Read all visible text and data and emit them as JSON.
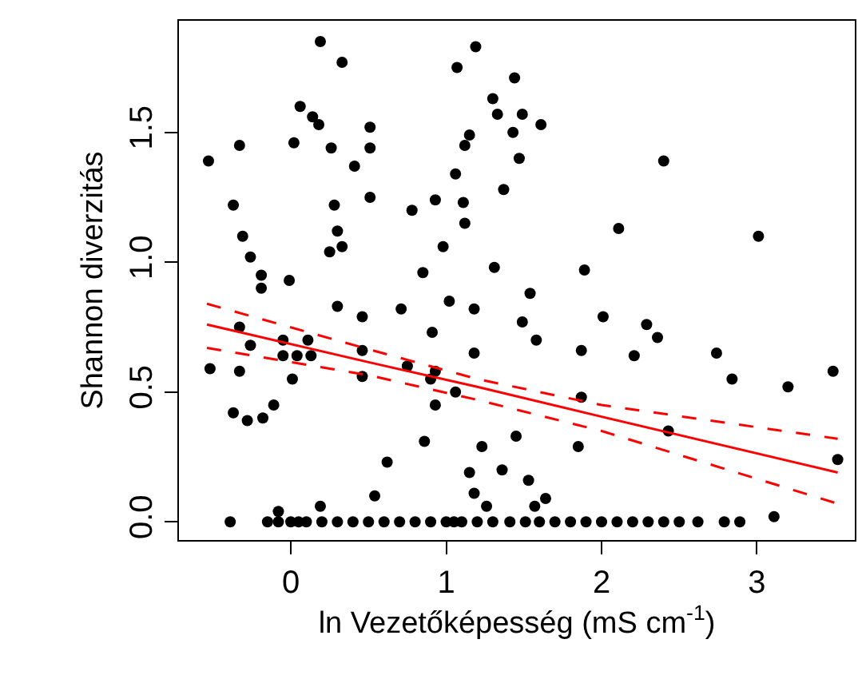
{
  "chart_data": {
    "type": "scatter",
    "xlabel": "ln Vezetőképesség (mS cm$^{-1}$)",
    "ylabel": "Shannon diverzitás",
    "xlim": [
      -0.72,
      3.63
    ],
    "ylim": [
      -0.07,
      1.93
    ],
    "xticks": [
      0,
      1,
      2,
      3
    ],
    "yticks": [
      {
        "value": 0,
        "label": "0.0"
      },
      {
        "value": 0.5,
        "label": "0.5"
      },
      {
        "value": 1,
        "label": "1.0"
      },
      {
        "value": 1.5,
        "label": "1.5"
      }
    ],
    "grid": false,
    "marker": "circle",
    "series": [
      {
        "color": "#000000",
        "x": [
          0.19,
          0.33,
          1.07,
          1.19,
          1.3,
          1.33,
          0.06,
          0.14,
          0.18,
          0.51,
          -0.33,
          0.02,
          0.26,
          0.51,
          1.15,
          1.12,
          -0.53,
          0.41,
          1.06,
          1.37,
          -0.37,
          0.28,
          0.51,
          0.78,
          0.93,
          1.11,
          1.12,
          -0.31,
          0.3,
          0.25,
          0.33,
          0.98,
          -0.26,
          -0.19,
          -0.01,
          0.85,
          1.31,
          1.44,
          1.49,
          1.61,
          1.43,
          1.47,
          2.4,
          2.11,
          3.01,
          1.89,
          -0.19,
          0.3,
          0.46,
          0.71,
          1.02,
          1.18,
          -0.33,
          -0.26,
          -0.05,
          -0.05,
          0.11,
          0.04,
          0.13,
          0.46,
          0.91,
          1.18,
          -0.52,
          -0.33,
          0.01,
          0.46,
          0.75,
          0.93,
          0.9,
          1.06,
          0.93,
          -0.37,
          -0.28,
          -0.18,
          -0.11,
          0.86,
          1.23,
          0.62,
          1.15,
          1.36,
          0.54,
          1.18,
          1.26,
          0.19,
          -0.08,
          1.54,
          1.49,
          2.01,
          2.29,
          2.36,
          1.58,
          1.87,
          2.21,
          2.74,
          2.84,
          3.2,
          3.49,
          1.87,
          2.43,
          3.52,
          1.45,
          1.85,
          1.53,
          1.64,
          1.57,
          3.11,
          -0.39,
          -0.15,
          -0.08,
          0,
          0.05,
          0.1,
          0.2,
          0.3,
          0.4,
          0.5,
          0.6,
          0.7,
          0.8,
          0.9,
          1.0,
          1.05,
          1.1,
          1.2,
          1.3,
          1.41,
          1.51,
          1.6,
          1.7,
          1.8,
          1.9,
          2.0,
          2.1,
          2.2,
          2.3,
          2.4,
          2.5,
          2.62,
          2.79,
          2.89
        ],
        "values": [
          1.85,
          1.77,
          1.75,
          1.83,
          1.63,
          1.57,
          1.6,
          1.56,
          1.53,
          1.52,
          1.45,
          1.46,
          1.44,
          1.44,
          1.49,
          1.45,
          1.39,
          1.37,
          1.34,
          1.28,
          1.22,
          1.22,
          1.25,
          1.2,
          1.24,
          1.23,
          1.15,
          1.1,
          1.12,
          1.04,
          1.06,
          1.06,
          1.02,
          0.95,
          0.93,
          0.96,
          0.98,
          1.71,
          1.57,
          1.53,
          1.5,
          1.4,
          1.39,
          1.13,
          1.1,
          0.97,
          0.9,
          0.83,
          0.79,
          0.82,
          0.85,
          0.82,
          0.75,
          0.68,
          0.7,
          0.64,
          0.7,
          0.64,
          0.64,
          0.66,
          0.73,
          0.65,
          0.59,
          0.58,
          0.55,
          0.56,
          0.6,
          0.58,
          0.55,
          0.5,
          0.45,
          0.42,
          0.39,
          0.4,
          0.45,
          0.31,
          0.29,
          0.23,
          0.19,
          0.2,
          0.1,
          0.11,
          0.06,
          0.06,
          0.04,
          0.88,
          0.77,
          0.79,
          0.76,
          0.71,
          0.7,
          0.66,
          0.64,
          0.65,
          0.55,
          0.52,
          0.58,
          0.48,
          0.35,
          0.24,
          0.33,
          0.29,
          0.16,
          0.09,
          0.06,
          0.02,
          0,
          0,
          0,
          0,
          0,
          0,
          0,
          0,
          0,
          0,
          0,
          0,
          0,
          0,
          0,
          0,
          0,
          0,
          0,
          0,
          0,
          0,
          0,
          0,
          0,
          0,
          0,
          0,
          0,
          0,
          0,
          0,
          0,
          0
        ]
      },
      {
        "type": "line",
        "color": "#ff0000",
        "line_style": "solid",
        "marker": "none",
        "x": [
          -0.54,
          0.5,
          1.2,
          2.0,
          3.52
        ],
        "values": [
          0.76,
          0.615,
          0.52,
          0.405,
          0.19
        ]
      },
      {
        "type": "line",
        "color": "#ff0000",
        "line_style": "dashed",
        "marker": "none",
        "x": [
          -0.54,
          0.5,
          1.2,
          2.0,
          3.52
        ],
        "values": [
          0.84,
          0.665,
          0.55,
          0.45,
          0.32
        ]
      },
      {
        "type": "line",
        "color": "#ff0000",
        "line_style": "dashed",
        "marker": "none",
        "x": [
          -0.54,
          0.5,
          1.2,
          2.0,
          3.52
        ],
        "values": [
          0.67,
          0.565,
          0.47,
          0.35,
          0.07
        ]
      }
    ]
  }
}
